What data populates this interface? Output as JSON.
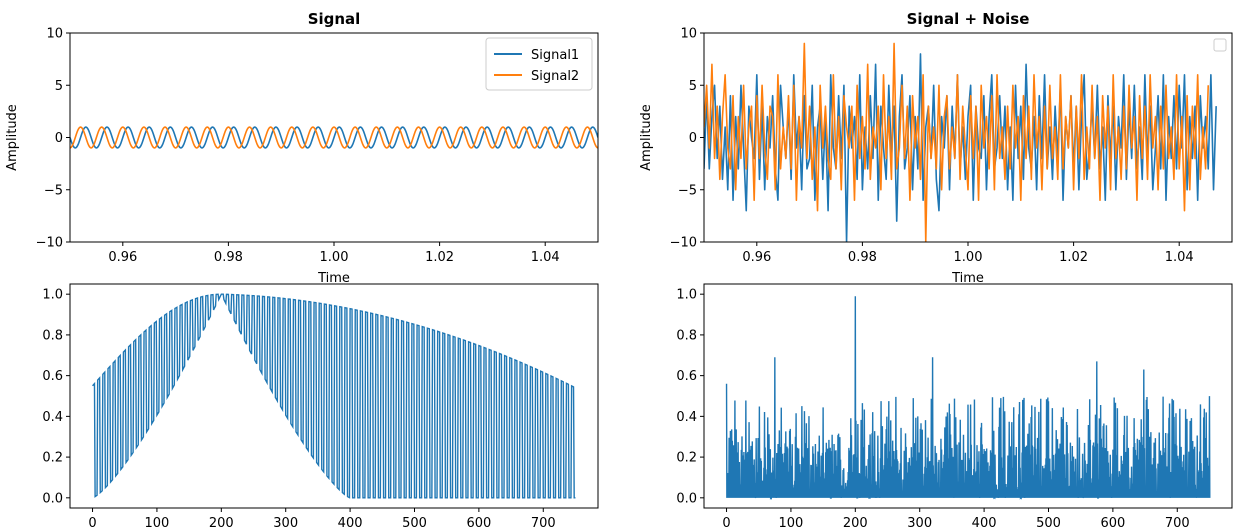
{
  "colors": {
    "series1": "#1f77b4",
    "series2": "#ff7f0e",
    "axes": "#000000",
    "legend_border": "#cccccc"
  },
  "chart_data": [
    {
      "id": "signal",
      "type": "line",
      "title": "Signal",
      "xlabel": "Time",
      "ylabel": "Amplitude",
      "xlim": [
        0.95,
        1.05
      ],
      "ylim": [
        -10,
        10
      ],
      "xticks": [
        0.96,
        0.98,
        1.0,
        1.02,
        1.04
      ],
      "xtick_labels": [
        "0.96",
        "0.98",
        "1.00",
        "1.02",
        "1.04"
      ],
      "yticks": [
        -10,
        -5,
        0,
        5,
        10
      ],
      "ytick_labels": [
        "−10",
        "−5",
        "0",
        "5",
        "10"
      ],
      "legend": {
        "position": "top-right",
        "entries": [
          "Signal1",
          "Signal2"
        ]
      },
      "grid": false,
      "series": [
        {
          "name": "Signal1",
          "amplitude": 1,
          "frequency_hz": 250,
          "phase_deg": 0
        },
        {
          "name": "Signal2",
          "amplitude": 1,
          "frequency_hz": 250,
          "phase_deg": 90
        }
      ]
    },
    {
      "id": "signal_noise",
      "type": "line",
      "title": "Signal + Noise",
      "xlabel": "Time",
      "ylabel": "Amplitude",
      "xlim": [
        0.95,
        1.05
      ],
      "ylim": [
        -10,
        10
      ],
      "xticks": [
        0.96,
        0.98,
        1.0,
        1.02,
        1.04
      ],
      "xtick_labels": [
        "0.96",
        "0.98",
        "1.00",
        "1.02",
        "1.04"
      ],
      "yticks": [
        -10,
        -5,
        0,
        5,
        10
      ],
      "ytick_labels": [
        "−10",
        "−5",
        "0",
        "5",
        "10"
      ],
      "legend": {
        "position": "top-right",
        "entries": []
      },
      "grid": false,
      "series": [
        {
          "name": "",
          "x_start": 0.95,
          "x_step": 0.0005,
          "values": [
            -3,
            4,
            -3,
            2,
            5,
            -2,
            3,
            -4,
            1,
            -5,
            4,
            -6,
            2,
            -3,
            5,
            -1,
            -7,
            3,
            0,
            -2,
            6,
            -4,
            3,
            -5,
            2,
            -1,
            4,
            -3,
            -6,
            5,
            1,
            -2,
            3,
            -4,
            6,
            -1,
            2,
            -5,
            4,
            -3,
            -2,
            5,
            -6,
            1,
            3,
            -4,
            2,
            -7,
            6,
            -1,
            -3,
            4,
            -2,
            5,
            -10,
            3,
            -1,
            2,
            -4,
            6,
            -5,
            1,
            -3,
            4,
            -2,
            7,
            -6,
            3,
            -1,
            -4,
            5,
            -2,
            3,
            -8,
            2,
            6,
            -3,
            -1,
            4,
            -5,
            2,
            -3,
            8,
            -6,
            1,
            3,
            -2,
            5,
            -4,
            -7,
            2,
            -1,
            4,
            -5,
            3,
            -2,
            6,
            -3,
            1,
            -4,
            2,
            5,
            -6,
            3,
            -1,
            -2,
            4,
            -5,
            2,
            6,
            -3,
            -1,
            4,
            -2,
            3,
            -5,
            1,
            -6,
            5,
            -2,
            3,
            -4,
            7,
            -1,
            -3,
            2,
            -5,
            4,
            -2,
            6,
            -3,
            1,
            -4,
            3,
            -2,
            5,
            -6,
            2,
            -1,
            4,
            -3,
            3,
            -5,
            2,
            6,
            -4,
            -1,
            3,
            -2,
            5,
            -3,
            1,
            -6,
            4,
            -2,
            3,
            -5,
            2,
            -1,
            6,
            -4,
            3,
            -2,
            5,
            -3,
            1,
            -4,
            6,
            -2,
            3,
            -5,
            -1,
            4,
            -3,
            6,
            -6,
            2,
            -2,
            4,
            -3,
            5,
            -1,
            6,
            -5,
            2,
            -2,
            3,
            -6,
            4,
            -1,
            2,
            -3,
            6,
            -5,
            3
          ]
        },
        {
          "name": "",
          "x_start": 0.95,
          "x_step": 0.0005,
          "values": [
            1,
            5,
            -1,
            7,
            -2,
            3,
            -4,
            2,
            6,
            -1,
            -3,
            4,
            -5,
            2,
            -2,
            5,
            -3,
            1,
            3,
            -6,
            4,
            -2,
            5,
            -1,
            -4,
            3,
            2,
            -5,
            6,
            -3,
            1,
            -2,
            4,
            -3,
            5,
            -6,
            2,
            -1,
            9,
            -2,
            3,
            -4,
            1,
            -7,
            5,
            -1,
            3,
            -2,
            -4,
            6,
            -3,
            2,
            -5,
            4,
            1,
            -1,
            3,
            -6,
            5,
            -2,
            2,
            -3,
            7,
            -4,
            1,
            -1,
            3,
            -5,
            6,
            -2,
            2,
            -4,
            9,
            -3,
            -1,
            5,
            -2,
            3,
            -6,
            4,
            -1,
            2,
            -4,
            6,
            -10,
            3,
            -2,
            1,
            -3,
            5,
            -5,
            2,
            4,
            -3,
            1,
            -2,
            6,
            -4,
            3,
            -1,
            -5,
            4,
            -2,
            3,
            -6,
            5,
            -1,
            2,
            -3,
            4,
            -5,
            6,
            -2,
            1,
            -4,
            3,
            -3,
            5,
            -1,
            2,
            -6,
            4,
            -2,
            3,
            -4,
            6,
            -1,
            2,
            -5,
            3,
            -3,
            5,
            -2,
            1,
            -4,
            6,
            -3,
            2,
            -1,
            4,
            -5,
            3,
            -2,
            6,
            -4,
            1,
            -3,
            5,
            -2,
            2,
            -6,
            4,
            -1,
            3,
            -5,
            6,
            -2,
            1,
            -4,
            3,
            -3,
            5,
            -1,
            2,
            -6,
            4,
            -2,
            3,
            -4,
            6,
            -1,
            2,
            -5,
            3,
            -3,
            5,
            -2,
            1,
            -4,
            6,
            -3,
            2,
            -7,
            4,
            -5,
            3,
            -2,
            6,
            -4,
            1,
            -3,
            5
          ]
        }
      ]
    },
    {
      "id": "spectrum_clean",
      "type": "line",
      "title": "",
      "xlabel": "",
      "ylabel": "",
      "xlim": [
        -35,
        785
      ],
      "ylim": [
        -0.05,
        1.05
      ],
      "xticks": [
        0,
        100,
        200,
        300,
        400,
        500,
        600,
        700
      ],
      "xtick_labels": [
        "0",
        "100",
        "200",
        "300",
        "400",
        "500",
        "600",
        "700"
      ],
      "yticks": [
        0.0,
        0.2,
        0.4,
        0.6,
        0.8,
        1.0
      ],
      "ytick_labels": [
        "0.0",
        "0.2",
        "0.4",
        "0.6",
        "0.8",
        "1.0"
      ],
      "grid": false,
      "series": [
        {
          "name": "",
          "x_range": [
            0,
            750
          ],
          "envelope_peak_x": 200,
          "envelope_peak": 1.0,
          "envelope_end_value": 0.54,
          "oscillation_period": 8
        }
      ]
    },
    {
      "id": "spectrum_noise",
      "type": "line",
      "title": "",
      "xlabel": "",
      "ylabel": "",
      "xlim": [
        -35,
        785
      ],
      "ylim": [
        -0.05,
        1.05
      ],
      "xticks": [
        0,
        100,
        200,
        300,
        400,
        500,
        600,
        700
      ],
      "xtick_labels": [
        "0",
        "100",
        "200",
        "300",
        "400",
        "500",
        "600",
        "700"
      ],
      "yticks": [
        0.0,
        0.2,
        0.4,
        0.6,
        0.8,
        1.0
      ],
      "ytick_labels": [
        "0.0",
        "0.2",
        "0.4",
        "0.6",
        "0.8",
        "1.0"
      ],
      "grid": false,
      "series": [
        {
          "name": "",
          "x_range": [
            0,
            750
          ],
          "baseline_max": 0.5,
          "spikes": [
            [
              0,
              0.56
            ],
            [
              75,
              0.69
            ],
            [
              200,
              0.99
            ],
            [
              320,
              0.69
            ],
            [
              575,
              0.67
            ],
            [
              648,
              0.63
            ]
          ]
        }
      ]
    }
  ]
}
